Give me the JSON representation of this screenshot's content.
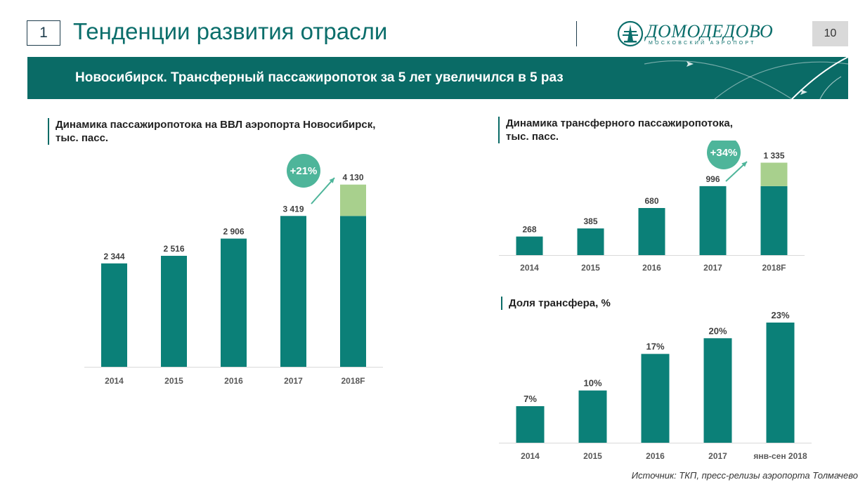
{
  "header": {
    "slide_number": "1",
    "title": "Тенденции развития отрасли",
    "logo_text": "ДОМОДЕДОВО",
    "logo_subtitle": "МОСКОВСКИЙ АЭРОПОРТ",
    "page_number": "10"
  },
  "banner": {
    "text": "Новосибирск. Трансферный пассажиропоток за 5 лет увеличился в 5 раз"
  },
  "colors": {
    "teal": "#0b8078",
    "light_green": "#a8d08d",
    "badge": "#4eb59a",
    "dark_teal": "#0a6b66"
  },
  "chart_data": [
    {
      "type": "bar",
      "title": "Динамика  пассажиропотока на ВВЛ аэропорта Новосибирск,\nтыс. пасс.",
      "categories": [
        "2014",
        "2015",
        "2016",
        "2017",
        "2018F"
      ],
      "values": [
        2344,
        2516,
        2906,
        3419,
        4130
      ],
      "labels": [
        "2 344",
        "2 516",
        "2 906",
        "3 419",
        "4 130"
      ],
      "highlight": {
        "category": "2018F",
        "base": 3419,
        "increment": 711
      },
      "growth_badge": "+21%",
      "ylim": [
        0,
        4300
      ]
    },
    {
      "type": "bar",
      "title": "Динамика  трансферного пассажиропотока,\nтыс. пасс.",
      "categories": [
        "2014",
        "2015",
        "2016",
        "2017",
        "2018F"
      ],
      "values": [
        268,
        385,
        680,
        996,
        1335
      ],
      "labels": [
        "268",
        "385",
        "680",
        "996",
        "1 335"
      ],
      "highlight": {
        "category": "2018F",
        "base": 996,
        "increment": 339
      },
      "growth_badge": "+34%",
      "ylim": [
        0,
        1350
      ]
    },
    {
      "type": "bar",
      "title": "Доля трансфера, %",
      "categories": [
        "2014",
        "2015",
        "2016",
        "2017",
        "янв-сен 2018"
      ],
      "values": [
        7,
        10,
        17,
        20,
        23
      ],
      "labels": [
        "7%",
        "10%",
        "17%",
        "20%",
        "23%"
      ],
      "ylim": [
        0,
        23
      ]
    }
  ],
  "footer": {
    "source": "Источник: ТКП, пресс-релизы аэропорта Толмачево"
  }
}
